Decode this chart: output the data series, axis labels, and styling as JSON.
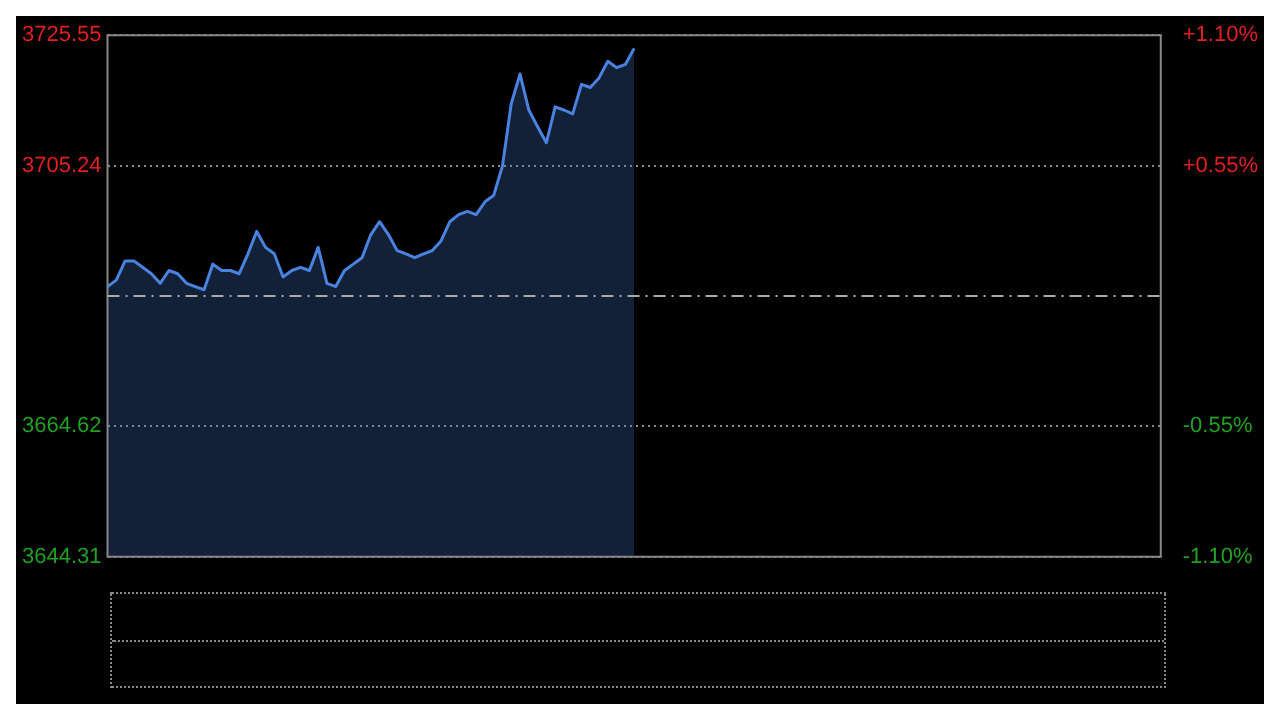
{
  "chart_data": {
    "type": "area",
    "categories": [
      null,
      null,
      null,
      null,
      null,
      null,
      null,
      null,
      null,
      null,
      null,
      null,
      null,
      null,
      null,
      null,
      null,
      null,
      null,
      null,
      null,
      null,
      null,
      null,
      null,
      null,
      null,
      null,
      null,
      null,
      null,
      null,
      null,
      null,
      null,
      null,
      null,
      null,
      null,
      null,
      null,
      null,
      null,
      null,
      null,
      null,
      null,
      null,
      null,
      null,
      null,
      null,
      null,
      null,
      null,
      null,
      null,
      null,
      null,
      null,
      null,
      null,
      null,
      null,
      null,
      null,
      null,
      null,
      null,
      null,
      null,
      null,
      null,
      null,
      null,
      null,
      null,
      null,
      null,
      null,
      null,
      null,
      null,
      null,
      null,
      null,
      null,
      null,
      null,
      null,
      null,
      null,
      null,
      null,
      null,
      null,
      null,
      null,
      null,
      null,
      null,
      null,
      null,
      null,
      null,
      null,
      null,
      null,
      null,
      null,
      null,
      null,
      null,
      null,
      null,
      null,
      null,
      null,
      null,
      null,
      null
    ],
    "series": [
      {
        "color": "#4a82e0",
        "values": [
          3686.4,
          3687.4,
          3690.4,
          3690.4,
          3689.4,
          3688.4,
          3686.9,
          3688.9,
          3688.4,
          3686.9,
          3686.4,
          3685.9,
          3689.9,
          3688.9,
          3688.9,
          3688.4,
          3691.5,
          3695.0,
          3692.5,
          3691.5,
          3687.9,
          3688.9,
          3689.4,
          3688.9,
          3692.5,
          3686.9,
          3686.4,
          3688.9,
          3689.9,
          3690.9,
          3694.5,
          3696.5,
          3694.5,
          3692.0,
          3691.5,
          3690.9,
          3691.5,
          3692.0,
          3693.5,
          3696.5,
          3697.6,
          3698.1,
          3697.6,
          3699.6,
          3700.6,
          3705.2,
          3714.9,
          3719.5,
          3713.9,
          3711.3,
          3708.8,
          3714.4,
          3713.9,
          3713.3,
          3717.9,
          3717.4,
          3718.9,
          3721.5,
          3720.5,
          3721.0,
          3723.5,
          null,
          null,
          null,
          null,
          null,
          null,
          null,
          null,
          null,
          null,
          null,
          null,
          null,
          null,
          null,
          null,
          null,
          null,
          null,
          null,
          null,
          null,
          null,
          null,
          null,
          null,
          null,
          null,
          null,
          null,
          null,
          null,
          null,
          null,
          null,
          null,
          null,
          null,
          null,
          null,
          null,
          null,
          null,
          null,
          null,
          null,
          null,
          null,
          null,
          null,
          null,
          null,
          null,
          null,
          null,
          null,
          null,
          null,
          null,
          null
        ]
      }
    ],
    "ylim": [
      3644.31,
      3725.55
    ],
    "yticks": [
      3644.31,
      3664.62,
      3705.24,
      3725.55
    ],
    "y2lim": [
      -1.1,
      1.1
    ],
    "y2ticks": [
      {
        "value": -1.1,
        "label": "-1.10%"
      },
      {
        "value": -0.55,
        "label": "-0.55%"
      },
      {
        "value": 0.55,
        "label": "+0.55%"
      },
      {
        "value": 1.1,
        "label": "+1.10%"
      }
    ],
    "grid": "y",
    "ref_lines": [
      {
        "axis": "y",
        "value": 3684.93,
        "color": "#aaaaaa",
        "line_style": "dashed"
      }
    ]
  }
}
